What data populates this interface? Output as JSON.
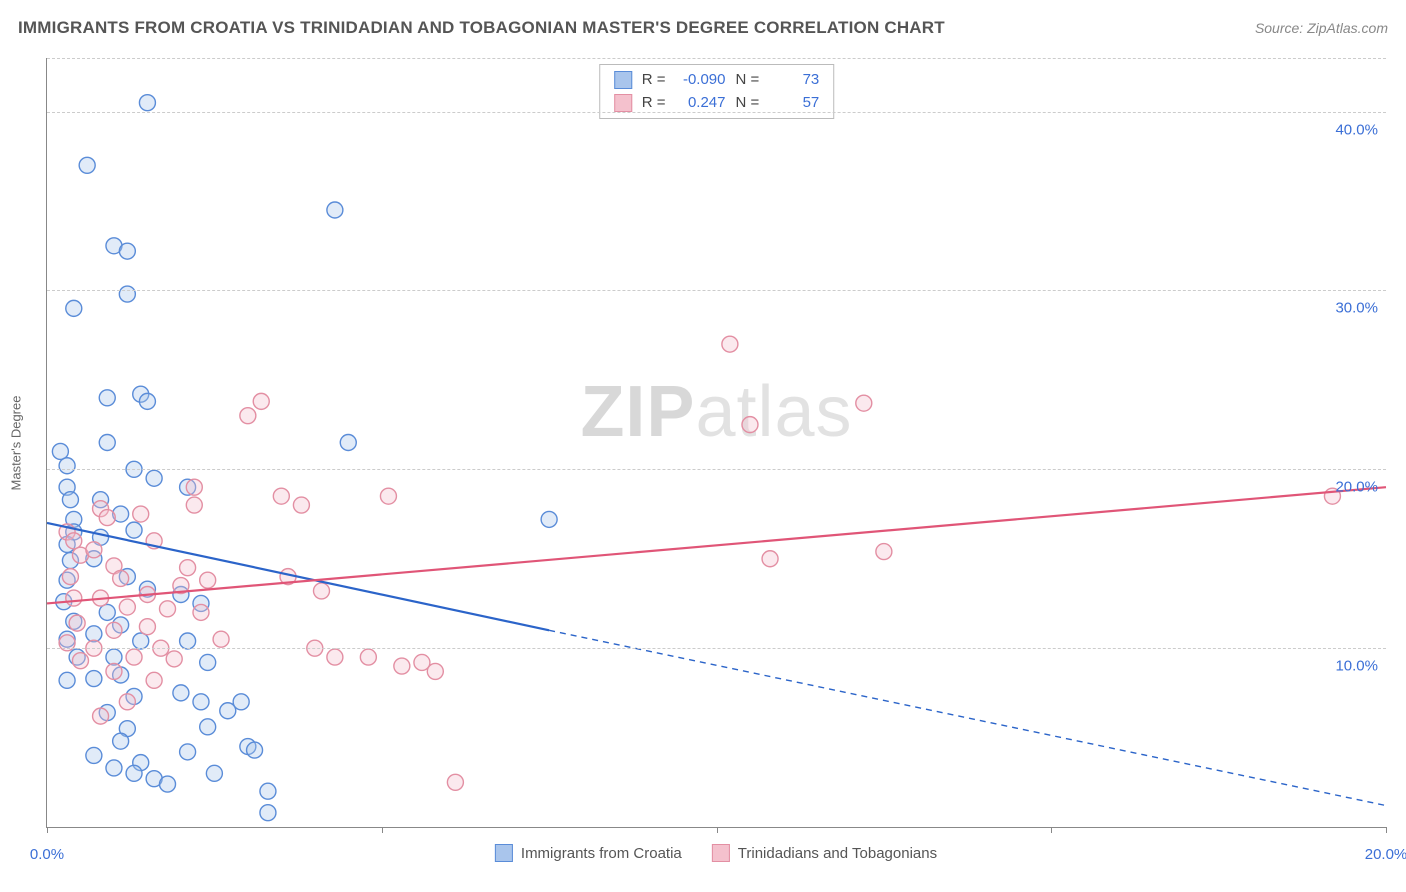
{
  "title": "IMMIGRANTS FROM CROATIA VS TRINIDADIAN AND TOBAGONIAN MASTER'S DEGREE CORRELATION CHART",
  "source_label": "Source:",
  "source_value": "ZipAtlas.com",
  "y_axis_label": "Master's Degree",
  "watermark_bold": "ZIP",
  "watermark_rest": "atlas",
  "chart": {
    "type": "scatter",
    "xlim": [
      0,
      20
    ],
    "ylim": [
      0,
      43
    ],
    "x_ticks": [
      0,
      5,
      10,
      15,
      20
    ],
    "x_tick_labels": [
      "0.0%",
      "",
      "",
      "",
      "20.0%"
    ],
    "y_ticks": [
      10,
      20,
      30,
      40
    ],
    "y_tick_labels": [
      "10.0%",
      "20.0%",
      "30.0%",
      "40.0%"
    ],
    "grid_color": "#cccccc",
    "axis_color": "#888888",
    "background_color": "#ffffff",
    "marker_radius": 8,
    "marker_stroke_width": 1.4,
    "marker_fill_opacity": 0.35,
    "line_width": 2.2
  },
  "series": [
    {
      "name": "Immigrants from Croatia",
      "color_stroke": "#5a8cd8",
      "color_fill": "#a9c5ec",
      "line_color": "#2b64c9",
      "R": "-0.090",
      "N": "73",
      "trend": {
        "x1": 0,
        "y1": 17.0,
        "x2": 7.5,
        "y2": 11.0,
        "ext_x2": 20,
        "ext_y2": 1.2
      },
      "points": [
        [
          0.2,
          21.0
        ],
        [
          0.3,
          20.2
        ],
        [
          0.3,
          19.0
        ],
        [
          0.35,
          18.3
        ],
        [
          0.4,
          17.2
        ],
        [
          0.4,
          16.5
        ],
        [
          0.3,
          15.8
        ],
        [
          0.35,
          14.9
        ],
        [
          0.3,
          13.8
        ],
        [
          0.25,
          12.6
        ],
        [
          0.4,
          11.5
        ],
        [
          0.3,
          10.5
        ],
        [
          0.45,
          9.5
        ],
        [
          0.3,
          8.2
        ],
        [
          0.4,
          29.0
        ],
        [
          0.6,
          37.0
        ],
        [
          1.5,
          40.5
        ],
        [
          1.0,
          32.5
        ],
        [
          1.2,
          32.2
        ],
        [
          1.2,
          29.8
        ],
        [
          0.9,
          24.0
        ],
        [
          1.4,
          24.2
        ],
        [
          1.5,
          23.8
        ],
        [
          0.9,
          21.5
        ],
        [
          1.3,
          20.0
        ],
        [
          1.6,
          19.5
        ],
        [
          0.8,
          18.3
        ],
        [
          1.1,
          17.5
        ],
        [
          1.3,
          16.6
        ],
        [
          0.8,
          16.2
        ],
        [
          0.7,
          15.0
        ],
        [
          1.2,
          14.0
        ],
        [
          1.5,
          13.3
        ],
        [
          0.9,
          12.0
        ],
        [
          1.1,
          11.3
        ],
        [
          0.7,
          10.8
        ],
        [
          1.4,
          10.4
        ],
        [
          1.0,
          9.5
        ],
        [
          1.1,
          8.5
        ],
        [
          0.7,
          8.3
        ],
        [
          1.3,
          7.3
        ],
        [
          0.9,
          6.4
        ],
        [
          1.2,
          5.5
        ],
        [
          1.1,
          4.8
        ],
        [
          0.7,
          4.0
        ],
        [
          1.4,
          3.6
        ],
        [
          1.0,
          3.3
        ],
        [
          1.3,
          3.0
        ],
        [
          1.6,
          2.7
        ],
        [
          1.8,
          2.4
        ],
        [
          2.1,
          19.0
        ],
        [
          2.0,
          13.0
        ],
        [
          2.3,
          12.5
        ],
        [
          2.1,
          10.4
        ],
        [
          2.4,
          9.2
        ],
        [
          2.0,
          7.5
        ],
        [
          2.3,
          7.0
        ],
        [
          2.7,
          6.5
        ],
        [
          2.4,
          5.6
        ],
        [
          2.1,
          4.2
        ],
        [
          2.5,
          3.0
        ],
        [
          2.9,
          7.0
        ],
        [
          3.0,
          4.5
        ],
        [
          3.1,
          4.3
        ],
        [
          3.3,
          2.0
        ],
        [
          3.3,
          0.8
        ],
        [
          4.3,
          34.5
        ],
        [
          4.5,
          21.5
        ],
        [
          7.5,
          17.2
        ]
      ]
    },
    {
      "name": "Trinidadians and Tobagonians",
      "color_stroke": "#e38fa3",
      "color_fill": "#f4c1cd",
      "line_color": "#e05577",
      "R": "0.247",
      "N": "57",
      "trend": {
        "x1": 0,
        "y1": 12.5,
        "x2": 20,
        "y2": 19.0
      },
      "points": [
        [
          0.3,
          16.5
        ],
        [
          0.4,
          16.0
        ],
        [
          0.5,
          15.2
        ],
        [
          0.35,
          14.0
        ],
        [
          0.4,
          12.8
        ],
        [
          0.45,
          11.4
        ],
        [
          0.3,
          10.3
        ],
        [
          0.5,
          9.3
        ],
        [
          0.8,
          17.8
        ],
        [
          0.9,
          17.3
        ],
        [
          0.7,
          15.5
        ],
        [
          1.0,
          14.6
        ],
        [
          1.1,
          13.9
        ],
        [
          0.8,
          12.8
        ],
        [
          1.2,
          12.3
        ],
        [
          1.0,
          11.0
        ],
        [
          0.7,
          10.0
        ],
        [
          1.3,
          9.5
        ],
        [
          1.0,
          8.7
        ],
        [
          1.2,
          7.0
        ],
        [
          0.8,
          6.2
        ],
        [
          1.4,
          17.5
        ],
        [
          1.6,
          16.0
        ],
        [
          1.5,
          13.0
        ],
        [
          1.8,
          12.2
        ],
        [
          1.5,
          11.2
        ],
        [
          1.7,
          10.0
        ],
        [
          1.9,
          9.4
        ],
        [
          1.6,
          8.2
        ],
        [
          2.2,
          19.0
        ],
        [
          2.1,
          14.5
        ],
        [
          2.4,
          13.8
        ],
        [
          2.0,
          13.5
        ],
        [
          2.3,
          12.0
        ],
        [
          2.6,
          10.5
        ],
        [
          2.2,
          18.0
        ],
        [
          3.0,
          23.0
        ],
        [
          3.2,
          23.8
        ],
        [
          3.5,
          18.5
        ],
        [
          3.6,
          14.0
        ],
        [
          3.8,
          18.0
        ],
        [
          4.1,
          13.2
        ],
        [
          4.0,
          10.0
        ],
        [
          4.3,
          9.5
        ],
        [
          4.8,
          9.5
        ],
        [
          5.1,
          18.5
        ],
        [
          5.3,
          9.0
        ],
        [
          5.6,
          9.2
        ],
        [
          5.8,
          8.7
        ],
        [
          6.1,
          2.5
        ],
        [
          10.5,
          22.5
        ],
        [
          10.2,
          27.0
        ],
        [
          12.2,
          23.7
        ],
        [
          10.8,
          15.0
        ],
        [
          12.5,
          15.4
        ],
        [
          19.2,
          18.5
        ]
      ]
    }
  ],
  "legend_R_label": "R =",
  "legend_N_label": "N ="
}
